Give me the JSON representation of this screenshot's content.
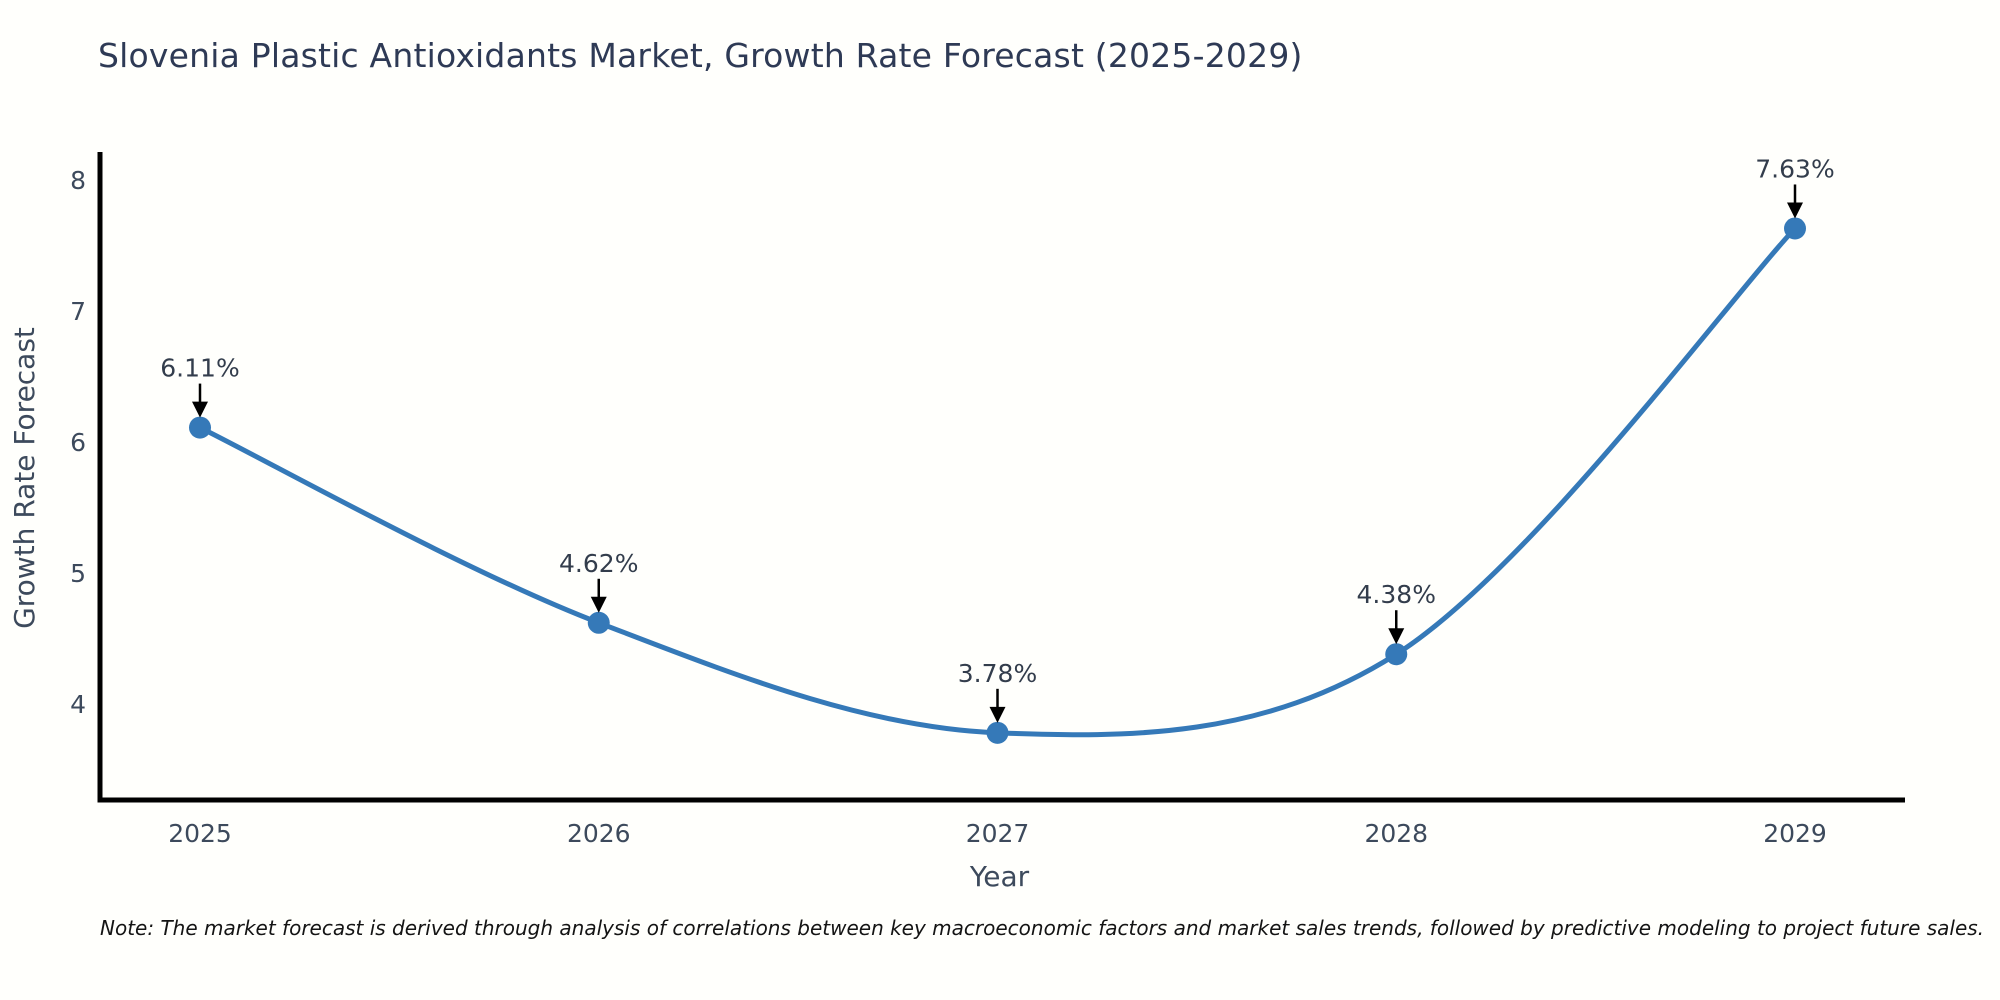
{
  "figure": {
    "title": "Slovenia Plastic Antioxidants Market, Growth Rate Forecast (2025-2029)",
    "note": "Note: The market forecast is derived through analysis of correlations between key macroeconomic factors and market sales trends, followed by predictive modeling to project future sales."
  },
  "chart_data": {
    "type": "line",
    "title": "Slovenia Plastic Antioxidants Market, Growth Rate Forecast (2025-2029)",
    "xlabel": "Year",
    "ylabel": "Growth Rate Forecast",
    "x": [
      2025,
      2026,
      2027,
      2028,
      2029
    ],
    "categories": [
      "2025",
      "2026",
      "2027",
      "2028",
      "2029"
    ],
    "values": [
      6.11,
      4.62,
      3.78,
      4.38,
      7.63
    ],
    "point_labels": [
      "6.11%",
      "4.62%",
      "3.78%",
      "4.38%",
      "7.63%"
    ],
    "yticks": [
      4,
      5,
      6,
      7,
      8
    ],
    "ylim": [
      3.28,
      8.21
    ],
    "xlim": [
      2024.75,
      2029.27
    ],
    "grid": false,
    "legend": false,
    "smooth": true,
    "annotations_have_arrows": true
  },
  "style": {
    "line_color": "#3579b8",
    "marker_color": "#3579b8",
    "arrow_color": "#000000",
    "spine_color": "#000000",
    "title_color": "#2e3a55",
    "axis_text_color": "#3d4a5c",
    "note_color": "#141414",
    "background_color": "#fffffc"
  }
}
